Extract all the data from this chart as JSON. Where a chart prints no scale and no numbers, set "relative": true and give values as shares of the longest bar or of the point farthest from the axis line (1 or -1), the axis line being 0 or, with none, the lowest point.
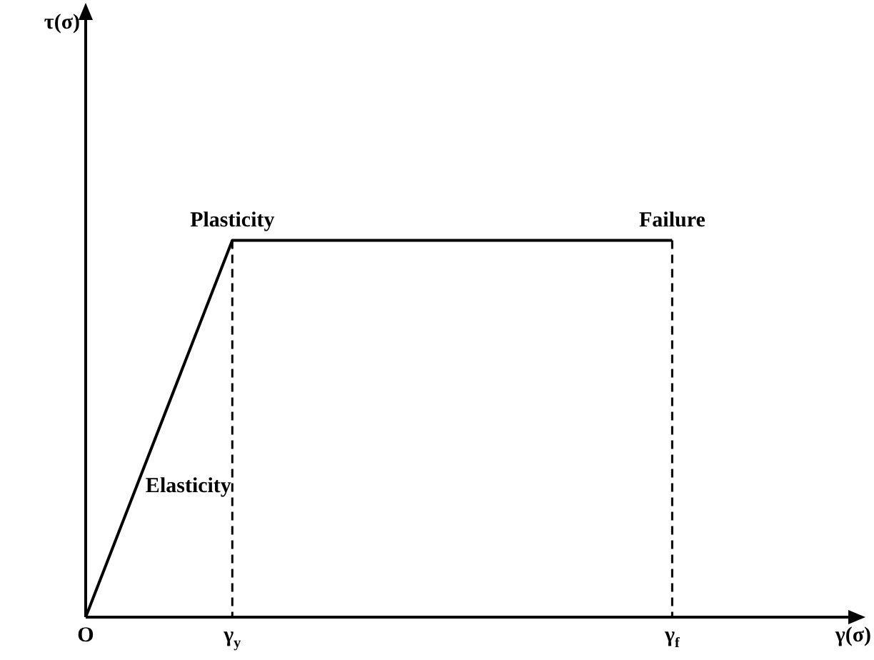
{
  "chart_data": {
    "type": "line",
    "relative": true,
    "xlabel": "γ(σ)",
    "categories": [
      "O",
      "γ$_{y}$",
      null,
      null,
      "γ$_{f}$",
      null
    ],
    "values": [
      0,
      1,
      1,
      1,
      1,
      null
    ],
    "color": "#000000",
    "ref_lines": [
      {
        "axis": "x",
        "value": "γ$_{y}$",
        "line_style": "dashed",
        "color": "#000000"
      },
      {
        "axis": "x",
        "value": "γ$_{f}$",
        "line_style": "dashed",
        "color": "#000000"
      }
    ],
    "annotations": [
      "Plasticity",
      "Failure",
      "Elasticity",
      "τ(σ)"
    ],
    "marker": "none",
    "line_style": "solid"
  }
}
